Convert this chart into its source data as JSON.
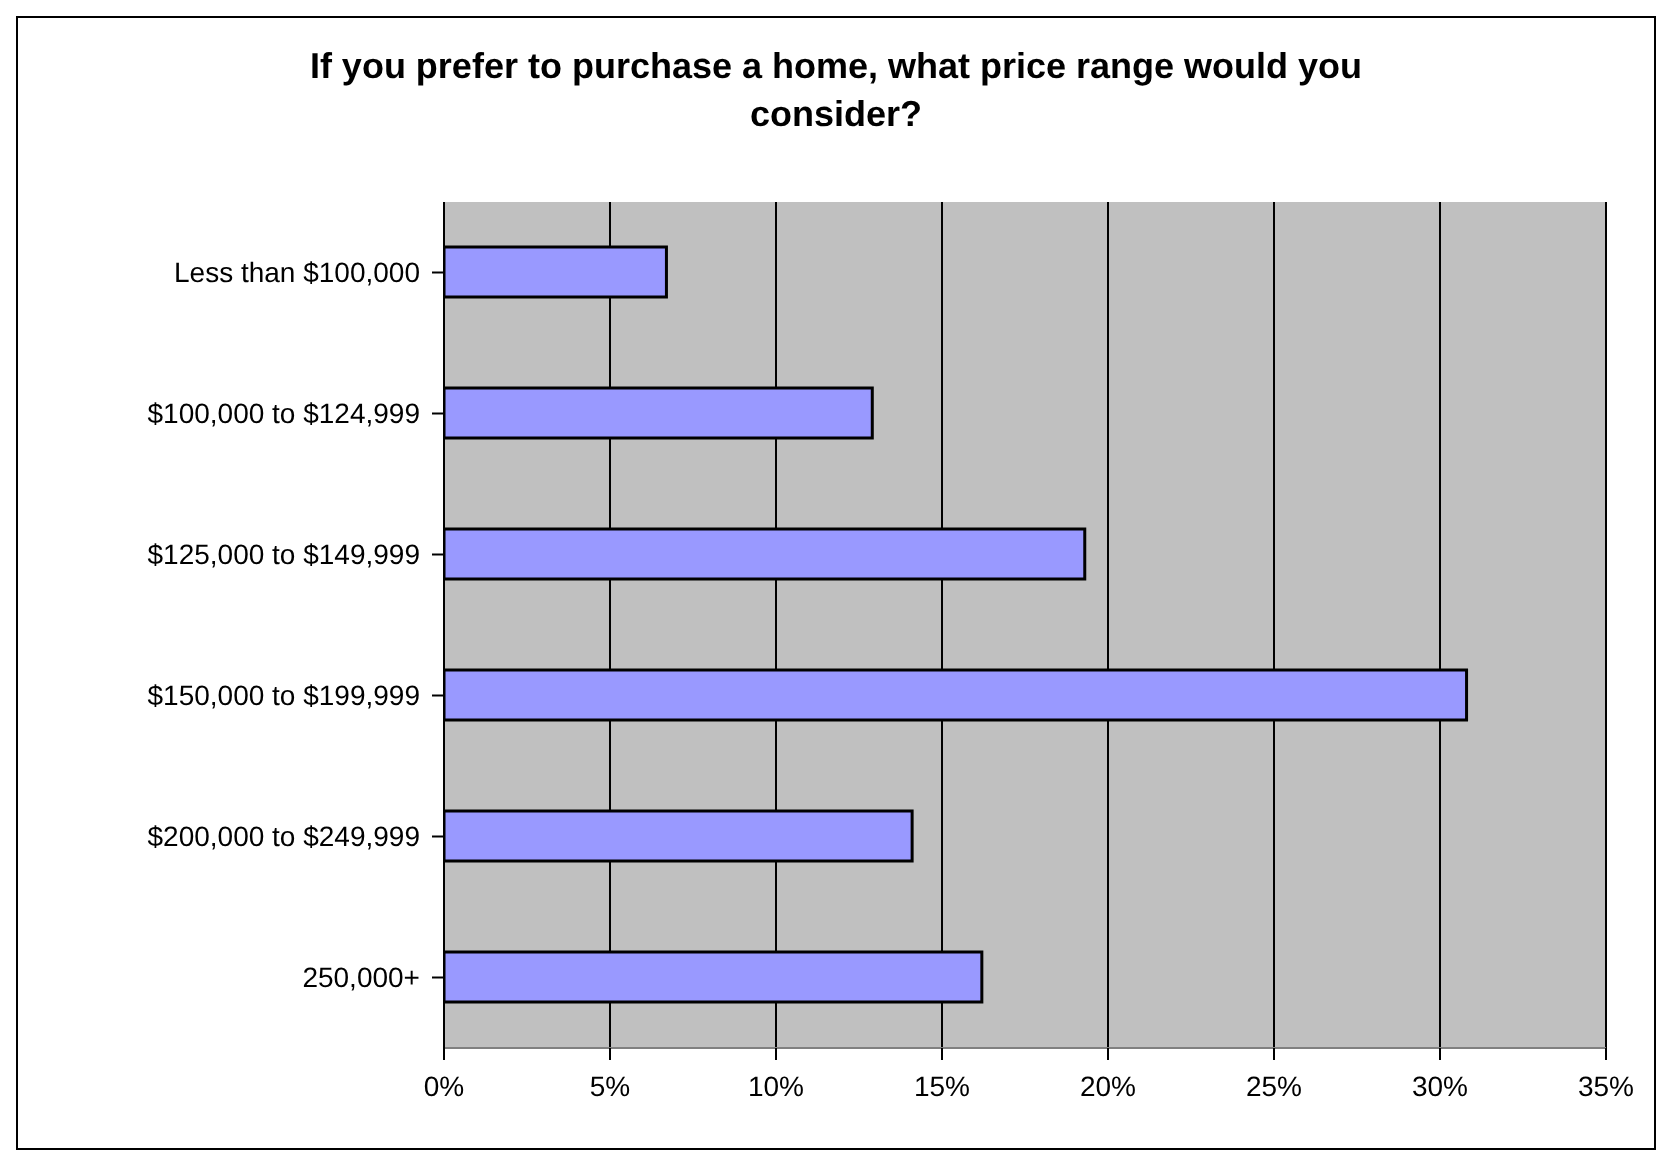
{
  "chart_data": {
    "type": "bar",
    "orientation": "horizontal",
    "title": "If you prefer to purchase a home, what price range would you consider?",
    "categories": [
      "Less than $100,000",
      "$100,000 to $124,999",
      "$125,000 to $149,999",
      "$150,000 to $199,999",
      "$200,000 to $249,999",
      "250,000+"
    ],
    "values": [
      6.7,
      12.9,
      19.3,
      30.8,
      14.1,
      16.2
    ],
    "color": "#9999ff",
    "xlim": [
      0,
      35
    ],
    "xticks": [
      {
        "value": 0,
        "label": "0%"
      },
      {
        "value": 5,
        "label": "5%"
      },
      {
        "value": 10,
        "label": "10%"
      },
      {
        "value": 15,
        "label": "15%"
      },
      {
        "value": 20,
        "label": "20%"
      },
      {
        "value": 25,
        "label": "25%"
      },
      {
        "value": 30,
        "label": "30%"
      },
      {
        "value": 35,
        "label": "35%"
      }
    ],
    "grid": "x",
    "legend": false
  }
}
